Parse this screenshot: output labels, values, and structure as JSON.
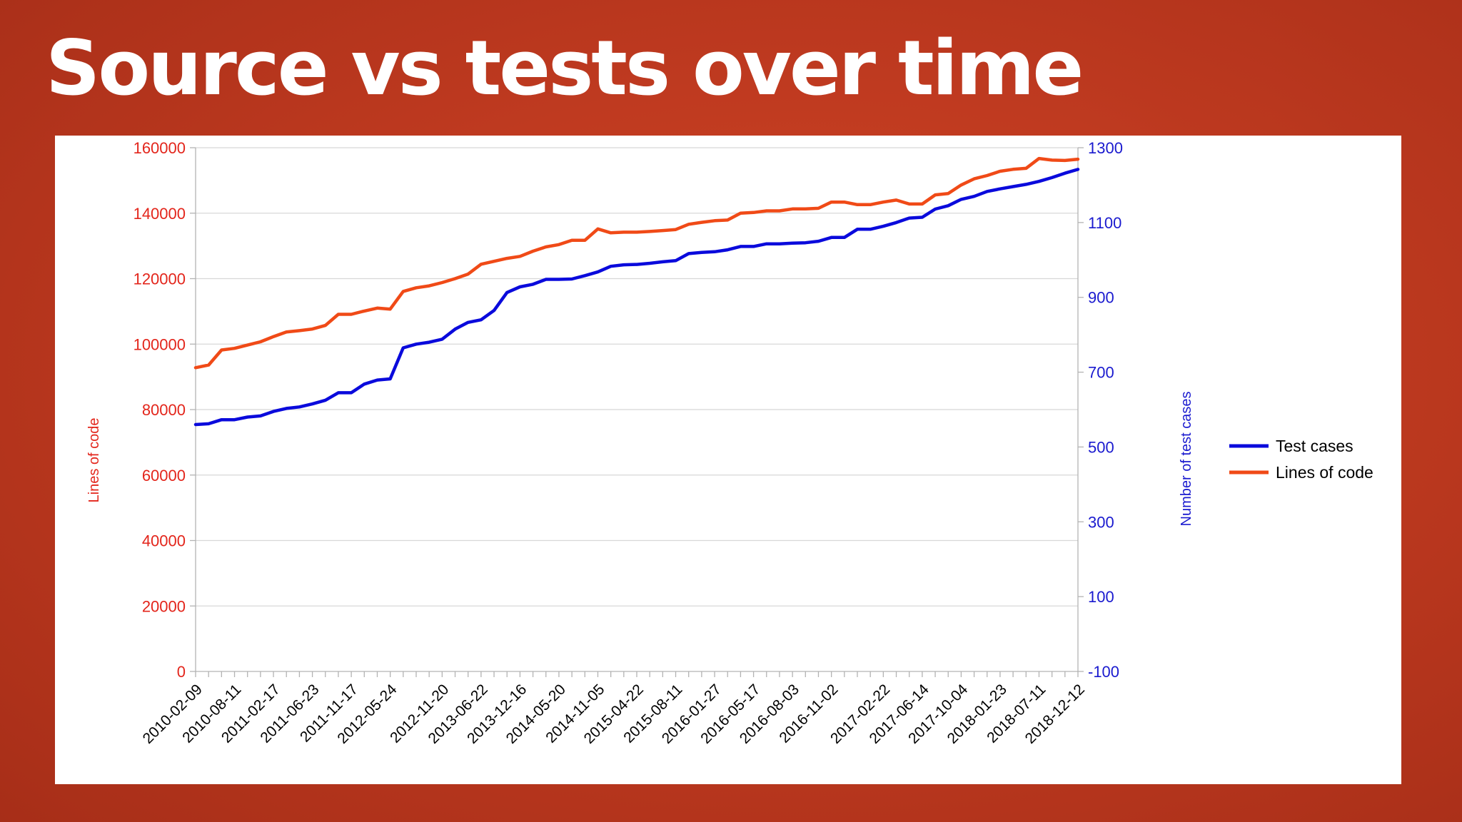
{
  "slide": {
    "title": "Source vs tests over time",
    "background_color": "#c23b21",
    "title_color": "#ffffff"
  },
  "chart_data": {
    "type": "line",
    "title": "",
    "ylabel": "Lines of code",
    "y2label": "Number of test cases",
    "ylim": [
      0,
      160000
    ],
    "y2lim": [
      -100,
      1300
    ],
    "yticks": [
      "0",
      "20000",
      "40000",
      "60000",
      "80000",
      "100000",
      "120000",
      "140000",
      "160000"
    ],
    "y2ticks": [
      "-100",
      "100",
      "300",
      "500",
      "700",
      "900",
      "1100",
      "1300"
    ],
    "xtick_labels": [
      "2010-02-09",
      "2010-08-11",
      "2011-02-17",
      "2011-06-23",
      "2011-11-17",
      "2012-05-24",
      "2012-11-20",
      "2013-06-22",
      "2013-12-16",
      "2014-05-20",
      "2014-11-05",
      "2015-04-22",
      "2015-08-11",
      "2016-01-27",
      "2016-05-17",
      "2016-08-03",
      "2016-11-02",
      "2017-02-22",
      "2017-06-14",
      "2017-10-04",
      "2018-01-23",
      "2018-07-11",
      "2018-12-12"
    ],
    "grid": true,
    "legend_position": "right",
    "series": [
      {
        "name": "Test cases",
        "axis": "right",
        "color": "#0a0adc",
        "values": [
          560,
          562,
          573,
          573,
          580,
          583,
          595,
          603,
          607,
          615,
          625,
          645,
          645,
          668,
          679,
          682,
          765,
          775,
          780,
          788,
          815,
          833,
          840,
          865,
          913,
          928,
          935,
          948,
          948,
          949,
          958,
          968,
          983,
          987,
          988,
          991,
          995,
          998,
          1017,
          1020,
          1022,
          1027,
          1036,
          1036,
          1043,
          1043,
          1045,
          1046,
          1050,
          1060,
          1060,
          1082,
          1082,
          1090,
          1100,
          1112,
          1114,
          1136,
          1145,
          1162,
          1170,
          1183,
          1190,
          1196,
          1202,
          1210,
          1220,
          1232,
          1242
        ]
      },
      {
        "name": "Lines of code",
        "axis": "left",
        "color": "#f04a17",
        "values": [
          92800,
          93600,
          98200,
          98700,
          99700,
          100700,
          102300,
          103700,
          104100,
          104600,
          105700,
          109100,
          109100,
          110100,
          111000,
          110700,
          116100,
          117200,
          117800,
          118800,
          120000,
          121400,
          124400,
          125300,
          126200,
          126800,
          128400,
          129700,
          130400,
          131700,
          131700,
          135200,
          134000,
          134200,
          134200,
          134400,
          134700,
          135000,
          136600,
          137200,
          137700,
          137900,
          140000,
          140200,
          140700,
          140700,
          141300,
          141300,
          141500,
          143400,
          143400,
          142600,
          142600,
          143400,
          144000,
          142800,
          142800,
          145600,
          146000,
          148600,
          150500,
          151500,
          152800,
          153400,
          153700,
          156700,
          156200,
          156100,
          156500
        ]
      }
    ]
  }
}
